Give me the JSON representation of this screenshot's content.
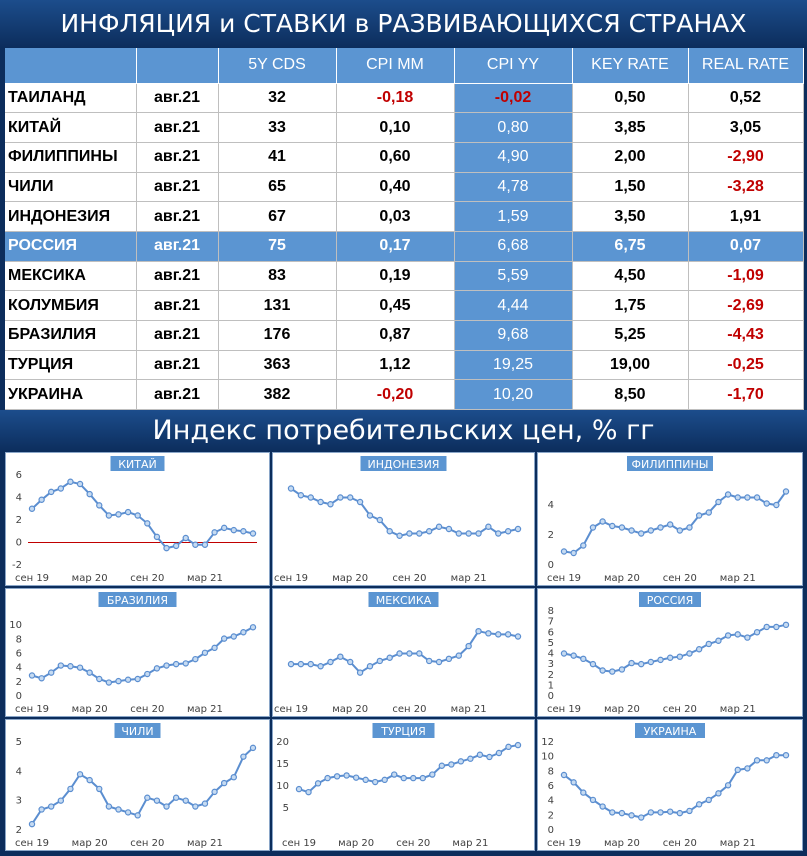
{
  "header": {
    "title": "ИНФЛЯЦИЯ и СТАВКИ в РАЗВИВАЮЩИХСЯ СТРАНАХ",
    "section_title": "Индекс потребительских цен, % гг"
  },
  "table": {
    "columns": [
      "",
      "",
      "5Y CDS",
      "CPI MM",
      "CPI YY",
      "KEY RATE",
      "REAL RATE"
    ],
    "rows": [
      {
        "country": "ТАИЛАНД",
        "date": "авг.21",
        "cds": "32",
        "cpi_mm": "-0,18",
        "cpi_yy": "-0,02",
        "key_rate": "0,50",
        "real_rate": "0,52"
      },
      {
        "country": "КИТАЙ",
        "date": "авг.21",
        "cds": "33",
        "cpi_mm": "0,10",
        "cpi_yy": "0,80",
        "key_rate": "3,85",
        "real_rate": "3,05"
      },
      {
        "country": "ФИЛИППИНЫ",
        "date": "авг.21",
        "cds": "41",
        "cpi_mm": "0,60",
        "cpi_yy": "4,90",
        "key_rate": "2,00",
        "real_rate": "-2,90"
      },
      {
        "country": "ЧИЛИ",
        "date": "авг.21",
        "cds": "65",
        "cpi_mm": "0,40",
        "cpi_yy": "4,78",
        "key_rate": "1,50",
        "real_rate": "-3,28"
      },
      {
        "country": "ИНДОНЕЗИЯ",
        "date": "авг.21",
        "cds": "67",
        "cpi_mm": "0,03",
        "cpi_yy": "1,59",
        "key_rate": "3,50",
        "real_rate": "1,91"
      },
      {
        "country": "РОССИЯ",
        "date": "авг.21",
        "cds": "75",
        "cpi_mm": "0,17",
        "cpi_yy": "6,68",
        "key_rate": "6,75",
        "real_rate": "0,07",
        "highlight": true
      },
      {
        "country": "МЕКСИКА",
        "date": "авг.21",
        "cds": "83",
        "cpi_mm": "0,19",
        "cpi_yy": "5,59",
        "key_rate": "4,50",
        "real_rate": "-1,09"
      },
      {
        "country": "КОЛУМБИЯ",
        "date": "авг.21",
        "cds": "131",
        "cpi_mm": "0,45",
        "cpi_yy": "4,44",
        "key_rate": "1,75",
        "real_rate": "-2,69"
      },
      {
        "country": "БРАЗИЛИЯ",
        "date": "авг.21",
        "cds": "176",
        "cpi_mm": "0,87",
        "cpi_yy": "9,68",
        "key_rate": "5,25",
        "real_rate": "-4,43"
      },
      {
        "country": "ТУРЦИЯ",
        "date": "авг.21",
        "cds": "363",
        "cpi_mm": "1,12",
        "cpi_yy": "19,25",
        "key_rate": "19,00",
        "real_rate": "-0,25"
      },
      {
        "country": "УКРАИНА",
        "date": "авг.21",
        "cds": "382",
        "cpi_mm": "-0,20",
        "cpi_yy": "10,20",
        "key_rate": "8,50",
        "real_rate": "-1,70"
      }
    ]
  },
  "colors": {
    "line": "#5b8ed0",
    "marker_fill": "#c6dbf2",
    "title_bg": "#5b95d2",
    "zero_line": "#c00000",
    "negative": "#c00000"
  },
  "chart_data": [
    {
      "type": "line",
      "title": "КИТАЙ",
      "ylim": [
        -2,
        6
      ],
      "yticks": [
        -2,
        0,
        2,
        4,
        6
      ],
      "xticks": [
        "сен 19",
        "мар 20",
        "сен 20",
        "мар 21"
      ],
      "zero_line": true,
      "values": [
        3.0,
        3.8,
        4.5,
        4.8,
        5.4,
        5.2,
        4.3,
        3.3,
        2.4,
        2.5,
        2.7,
        2.4,
        1.7,
        0.5,
        -0.5,
        -0.3,
        0.4,
        -0.2,
        -0.2,
        0.9,
        1.3,
        1.1,
        1.0,
        0.8
      ]
    },
    {
      "type": "line",
      "title": "ИНДОНЕЗИЯ",
      "ylim": [
        0,
        4
      ],
      "yticks": [],
      "xticks": [
        "сен 19",
        "мар 20",
        "сен 20",
        "мар 21"
      ],
      "values": [
        3.4,
        3.1,
        3.0,
        2.8,
        2.7,
        3.0,
        3.0,
        2.8,
        2.2,
        2.0,
        1.5,
        1.3,
        1.4,
        1.4,
        1.5,
        1.7,
        1.6,
        1.4,
        1.4,
        1.4,
        1.7,
        1.4,
        1.5,
        1.6
      ]
    },
    {
      "type": "line",
      "title": "ФИЛИППИНЫ",
      "ylim": [
        0,
        6
      ],
      "yticks": [
        0,
        2,
        4
      ],
      "xticks": [
        "сен 19",
        "мар 20",
        "сен 20",
        "мар 21"
      ],
      "values": [
        0.9,
        0.8,
        1.3,
        2.5,
        2.9,
        2.6,
        2.5,
        2.3,
        2.1,
        2.3,
        2.5,
        2.7,
        2.3,
        2.5,
        3.3,
        3.5,
        4.2,
        4.7,
        4.5,
        4.5,
        4.5,
        4.1,
        4.0,
        4.9
      ]
    },
    {
      "type": "line",
      "title": "БРАЗИЛИЯ",
      "ylim": [
        0,
        12
      ],
      "yticks": [
        0,
        2,
        4,
        6,
        8,
        10
      ],
      "xticks": [
        "сен 19",
        "мар 20",
        "сен 20",
        "мар 21"
      ],
      "values": [
        2.9,
        2.5,
        3.3,
        4.3,
        4.2,
        4.0,
        3.3,
        2.4,
        1.9,
        2.1,
        2.3,
        2.4,
        3.1,
        3.9,
        4.3,
        4.5,
        4.6,
        5.2,
        6.1,
        6.8,
        8.1,
        8.4,
        9.0,
        9.7
      ]
    },
    {
      "type": "line",
      "title": "МЕКСИКА",
      "ylim": [
        0,
        8
      ],
      "yticks": [],
      "xticks": [
        "сен 19",
        "мар 20",
        "сен 20",
        "мар 21"
      ],
      "values": [
        3.0,
        3.0,
        3.0,
        2.8,
        3.2,
        3.7,
        3.2,
        2.2,
        2.8,
        3.3,
        3.6,
        4.0,
        4.0,
        4.0,
        3.3,
        3.2,
        3.5,
        3.8,
        4.7,
        6.1,
        5.9,
        5.8,
        5.8,
        5.6
      ]
    },
    {
      "type": "line",
      "title": "РОССИЯ",
      "ylim": [
        0,
        8
      ],
      "yticks": [
        0,
        1,
        2,
        3,
        4,
        5,
        6,
        7,
        8
      ],
      "xticks": [
        "сен 19",
        "мар 20",
        "сен 20",
        "мар 21"
      ],
      "values": [
        4.0,
        3.8,
        3.5,
        3.0,
        2.4,
        2.3,
        2.5,
        3.1,
        3.0,
        3.2,
        3.4,
        3.6,
        3.7,
        4.0,
        4.4,
        4.9,
        5.2,
        5.7,
        5.8,
        5.5,
        6.0,
        6.5,
        6.5,
        6.7
      ]
    },
    {
      "type": "line",
      "title": "ЧИЛИ",
      "ylim": [
        2,
        5
      ],
      "yticks": [
        2,
        3,
        4,
        5
      ],
      "xticks": [
        "сен 19",
        "мар 20",
        "сен 20",
        "мар 21"
      ],
      "values": [
        2.2,
        2.7,
        2.8,
        3.0,
        3.4,
        3.9,
        3.7,
        3.4,
        2.8,
        2.7,
        2.6,
        2.5,
        3.1,
        3.0,
        2.8,
        3.1,
        3.0,
        2.8,
        2.9,
        3.3,
        3.6,
        3.8,
        4.5,
        4.8
      ]
    },
    {
      "type": "line",
      "title": "ТУРЦИЯ",
      "ylim": [
        0,
        20
      ],
      "yticks": [
        5,
        10,
        15,
        20
      ],
      "xticks": [
        "сен 19",
        "мар 20",
        "сен 20",
        "мар 21"
      ],
      "values": [
        9.3,
        8.6,
        10.6,
        11.8,
        12.2,
        12.4,
        11.9,
        11.4,
        10.9,
        11.4,
        12.6,
        11.8,
        11.8,
        11.8,
        12.6,
        14.6,
        14.9,
        15.6,
        16.2,
        17.1,
        16.6,
        17.5,
        18.9,
        19.3
      ]
    },
    {
      "type": "line",
      "title": "УКРАИНА",
      "ylim": [
        0,
        12
      ],
      "yticks": [
        0,
        2,
        4,
        6,
        8,
        10,
        12
      ],
      "xticks": [
        "сен 19",
        "мар 20",
        "сен 20",
        "мар 21"
      ],
      "values": [
        7.5,
        6.5,
        5.1,
        4.1,
        3.2,
        2.4,
        2.3,
        2.0,
        1.7,
        2.4,
        2.4,
        2.5,
        2.3,
        2.6,
        3.5,
        4.1,
        5.0,
        6.1,
        8.2,
        8.4,
        9.5,
        9.5,
        10.2,
        10.2
      ]
    }
  ]
}
